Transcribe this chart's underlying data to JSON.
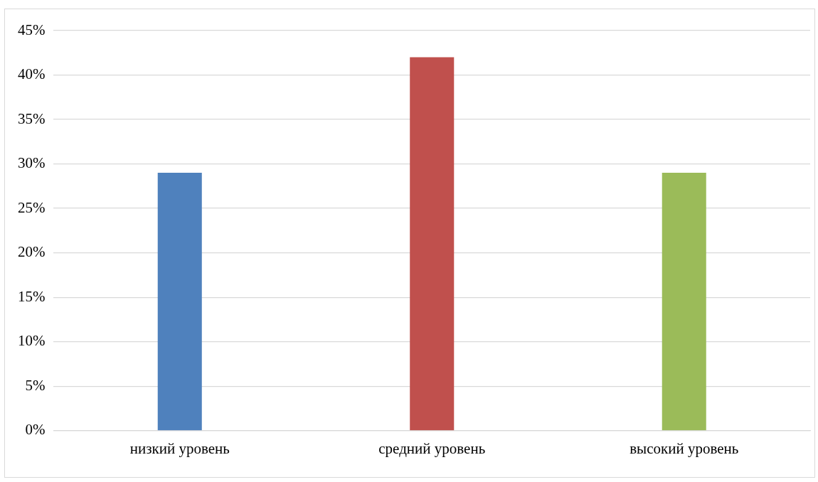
{
  "chart_data": {
    "type": "bar",
    "categories": [
      "низкий уровень",
      "средний уровень",
      "высокий уровень"
    ],
    "values": [
      29,
      42,
      29
    ],
    "colors": [
      "#4f81bd",
      "#c0504d",
      "#9bbb59"
    ],
    "ylim": [
      0,
      45
    ],
    "yticks": [
      {
        "value": 0,
        "label": "0%"
      },
      {
        "value": 5,
        "label": "5%"
      },
      {
        "value": 10,
        "label": "10%"
      },
      {
        "value": 15,
        "label": "15%"
      },
      {
        "value": 20,
        "label": "20%"
      },
      {
        "value": 25,
        "label": "25%"
      },
      {
        "value": 30,
        "label": "30%"
      },
      {
        "value": 35,
        "label": "35%"
      },
      {
        "value": 40,
        "label": "40%"
      },
      {
        "value": 45,
        "label": "45%"
      }
    ],
    "grid": "y",
    "legend": false
  }
}
